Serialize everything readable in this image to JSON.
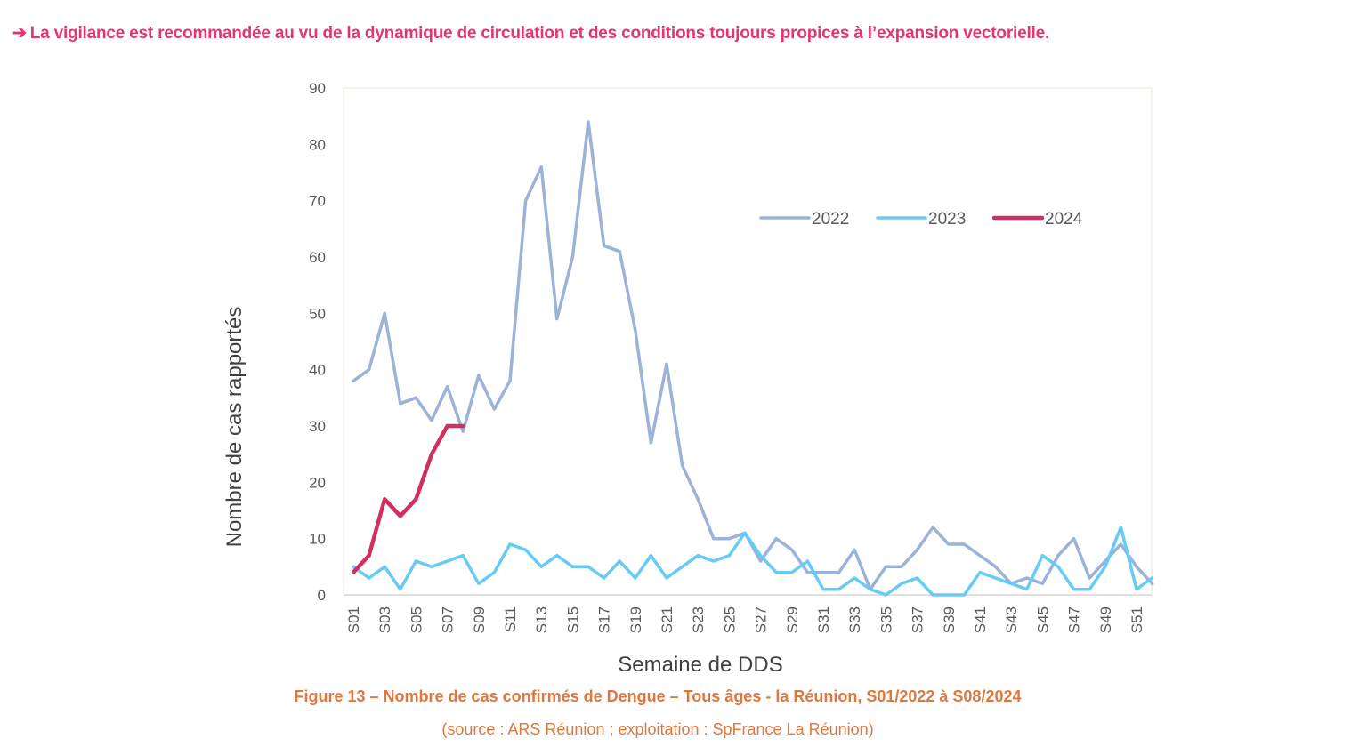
{
  "headline": {
    "arrow_icon": "➔",
    "text": "La vigilance est recommandée au vu de la dynamique de circulation et des conditions toujours propices à l’expansion vectorielle."
  },
  "caption": {
    "title": "Figure 13 – Nombre de cas confirmés de Dengue – Tous âges - la Réunion, S01/2022 à S08/2024",
    "source": "(source : ARS Réunion ; exploitation : SpFrance La Réunion)"
  },
  "chart_data": {
    "type": "line",
    "title": "",
    "xlabel": "Semaine de DDS",
    "ylabel": "Nombre de cas rapportés",
    "ylim": [
      0,
      90
    ],
    "yticks": [
      0,
      10,
      20,
      30,
      40,
      50,
      60,
      70,
      80,
      90
    ],
    "grid": false,
    "legend_position": "upper-right",
    "x": [
      "S01",
      "S02",
      "S03",
      "S04",
      "S05",
      "S06",
      "S07",
      "S08",
      "S09",
      "S10",
      "S11",
      "S12",
      "S13",
      "S14",
      "S15",
      "S16",
      "S17",
      "S18",
      "S19",
      "S20",
      "S21",
      "S22",
      "S23",
      "S24",
      "S25",
      "S26",
      "S27",
      "S28",
      "S29",
      "S30",
      "S31",
      "S32",
      "S33",
      "S34",
      "S35",
      "S36",
      "S37",
      "S38",
      "S39",
      "S40",
      "S41",
      "S42",
      "S43",
      "S44",
      "S45",
      "S46",
      "S47",
      "S48",
      "S49",
      "S50",
      "S51",
      "S52"
    ],
    "xtick_labels": [
      "S01",
      "S03",
      "S05",
      "S07",
      "S09",
      "S11",
      "S13",
      "S15",
      "S17",
      "S19",
      "S21",
      "S23",
      "S25",
      "S27",
      "S29",
      "S31",
      "S33",
      "S35",
      "S37",
      "S39",
      "S41",
      "S43",
      "S45",
      "S47",
      "S49",
      "S51"
    ],
    "series": [
      {
        "name": "2022",
        "color": "#9bb3d9",
        "values": [
          38,
          40,
          50,
          34,
          35,
          31,
          37,
          29,
          39,
          33,
          38,
          70,
          76,
          49,
          60,
          84,
          62,
          61,
          47,
          27,
          41,
          23,
          17,
          10,
          10,
          11,
          6,
          10,
          8,
          4,
          4,
          4,
          8,
          1,
          5,
          5,
          8,
          12,
          9,
          9,
          7,
          5,
          2,
          3,
          2,
          7,
          10,
          3,
          6,
          9,
          5,
          2
        ]
      },
      {
        "name": "2023",
        "color": "#66ccf5",
        "values": [
          5,
          3,
          5,
          1,
          6,
          5,
          6,
          7,
          2,
          4,
          9,
          8,
          5,
          7,
          5,
          5,
          3,
          6,
          3,
          7,
          3,
          5,
          7,
          6,
          7,
          11,
          7,
          4,
          4,
          6,
          1,
          1,
          3,
          1,
          0,
          2,
          3,
          0,
          0,
          0,
          4,
          3,
          2,
          1,
          7,
          5,
          1,
          1,
          5,
          12,
          1,
          3
        ]
      },
      {
        "name": "2024",
        "color": "#d0305d",
        "values": [
          4,
          7,
          17,
          14,
          17,
          25,
          30,
          30
        ]
      }
    ]
  }
}
